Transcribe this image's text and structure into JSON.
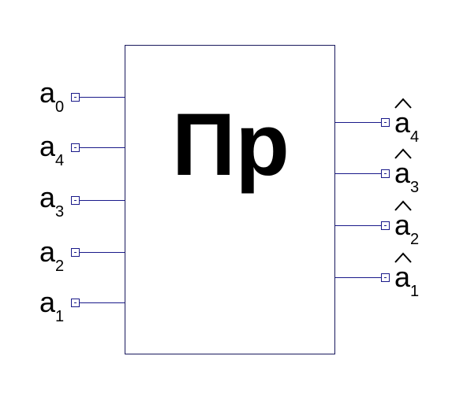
{
  "block": {
    "title": "Пр"
  },
  "inputs": [
    {
      "base": "a",
      "index": "0"
    },
    {
      "base": "a",
      "index": "4"
    },
    {
      "base": "a",
      "index": "3"
    },
    {
      "base": "a",
      "index": "2"
    },
    {
      "base": "a",
      "index": "1"
    }
  ],
  "outputs": [
    {
      "base": "a",
      "index": "4"
    },
    {
      "base": "a",
      "index": "3"
    },
    {
      "base": "a",
      "index": "2"
    },
    {
      "base": "a",
      "index": "1"
    }
  ],
  "colors": {
    "wire": "#1a1a8a",
    "text": "#000000"
  }
}
